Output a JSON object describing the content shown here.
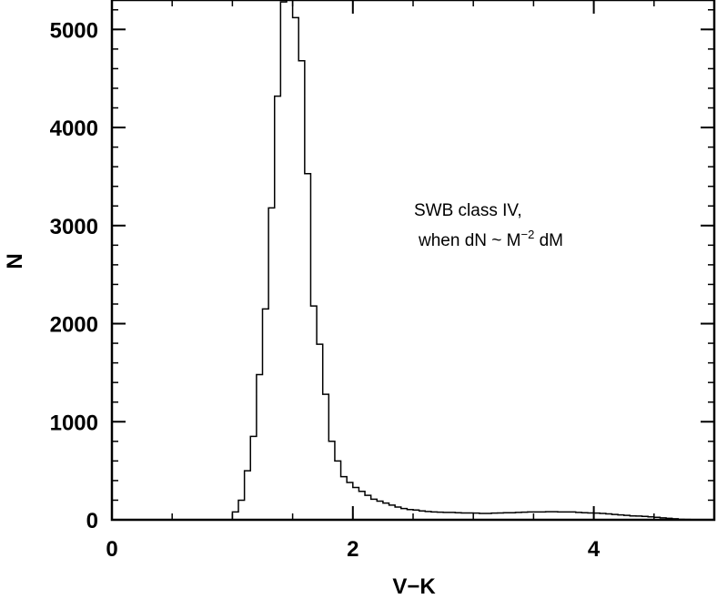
{
  "chart_data": {
    "type": "histogram",
    "title": "",
    "xlabel": "V−K",
    "ylabel": "N",
    "xlim": [
      0,
      5
    ],
    "ylim": [
      0,
      5300
    ],
    "x_ticks": [
      0,
      2,
      4
    ],
    "x_tick_labels": [
      "0",
      "2",
      "4"
    ],
    "y_ticks": [
      0,
      1000,
      2000,
      3000,
      4000,
      5000
    ],
    "y_tick_labels": [
      "0",
      "1000",
      "2000",
      "3000",
      "4000",
      "5000"
    ],
    "x_minor_step": 0.5,
    "y_minor_step": 200,
    "grid": false,
    "annotation": {
      "line1": "SWB class IV,",
      "line2_prefix": "when dN ~ M",
      "line2_sup": "−2",
      "line2_suffix": " dM"
    },
    "bin_width": 0.05,
    "bin_starts": [
      0.95,
      1.0,
      1.05,
      1.1,
      1.15,
      1.2,
      1.25,
      1.3,
      1.35,
      1.4,
      1.45,
      1.5,
      1.55,
      1.6,
      1.65,
      1.7,
      1.75,
      1.8,
      1.85,
      1.9,
      1.95,
      2.0,
      2.05,
      2.1,
      2.15,
      2.2,
      2.25,
      2.3,
      2.35,
      2.4,
      2.45,
      2.5,
      2.55,
      2.6,
      2.65,
      2.7,
      2.75,
      2.8,
      2.85,
      2.9,
      2.95,
      3.0,
      3.05,
      3.1,
      3.15,
      3.2,
      3.25,
      3.3,
      3.35,
      3.4,
      3.45,
      3.5,
      3.55,
      3.6,
      3.65,
      3.7,
      3.75,
      3.8,
      3.85,
      3.9,
      3.95,
      4.0,
      4.05,
      4.1,
      4.15,
      4.2,
      4.25,
      4.3,
      4.35,
      4.4,
      4.45,
      4.5,
      4.55,
      4.6,
      4.65,
      4.7,
      4.75,
      4.8,
      4.85,
      4.9,
      4.95
    ],
    "values": [
      0,
      80,
      200,
      500,
      850,
      1480,
      2150,
      3180,
      4320,
      5280,
      5320,
      5120,
      4680,
      3530,
      2180,
      1790,
      1280,
      800,
      600,
      440,
      380,
      330,
      290,
      250,
      210,
      190,
      170,
      150,
      130,
      115,
      105,
      100,
      90,
      85,
      80,
      78,
      75,
      75,
      72,
      70,
      70,
      68,
      65,
      65,
      68,
      70,
      72,
      72,
      75,
      78,
      80,
      80,
      80,
      82,
      82,
      80,
      80,
      80,
      75,
      72,
      70,
      68,
      65,
      60,
      55,
      50,
      45,
      40,
      38,
      35,
      30,
      25,
      20,
      15,
      10,
      5,
      3,
      0,
      0,
      0,
      0
    ]
  }
}
